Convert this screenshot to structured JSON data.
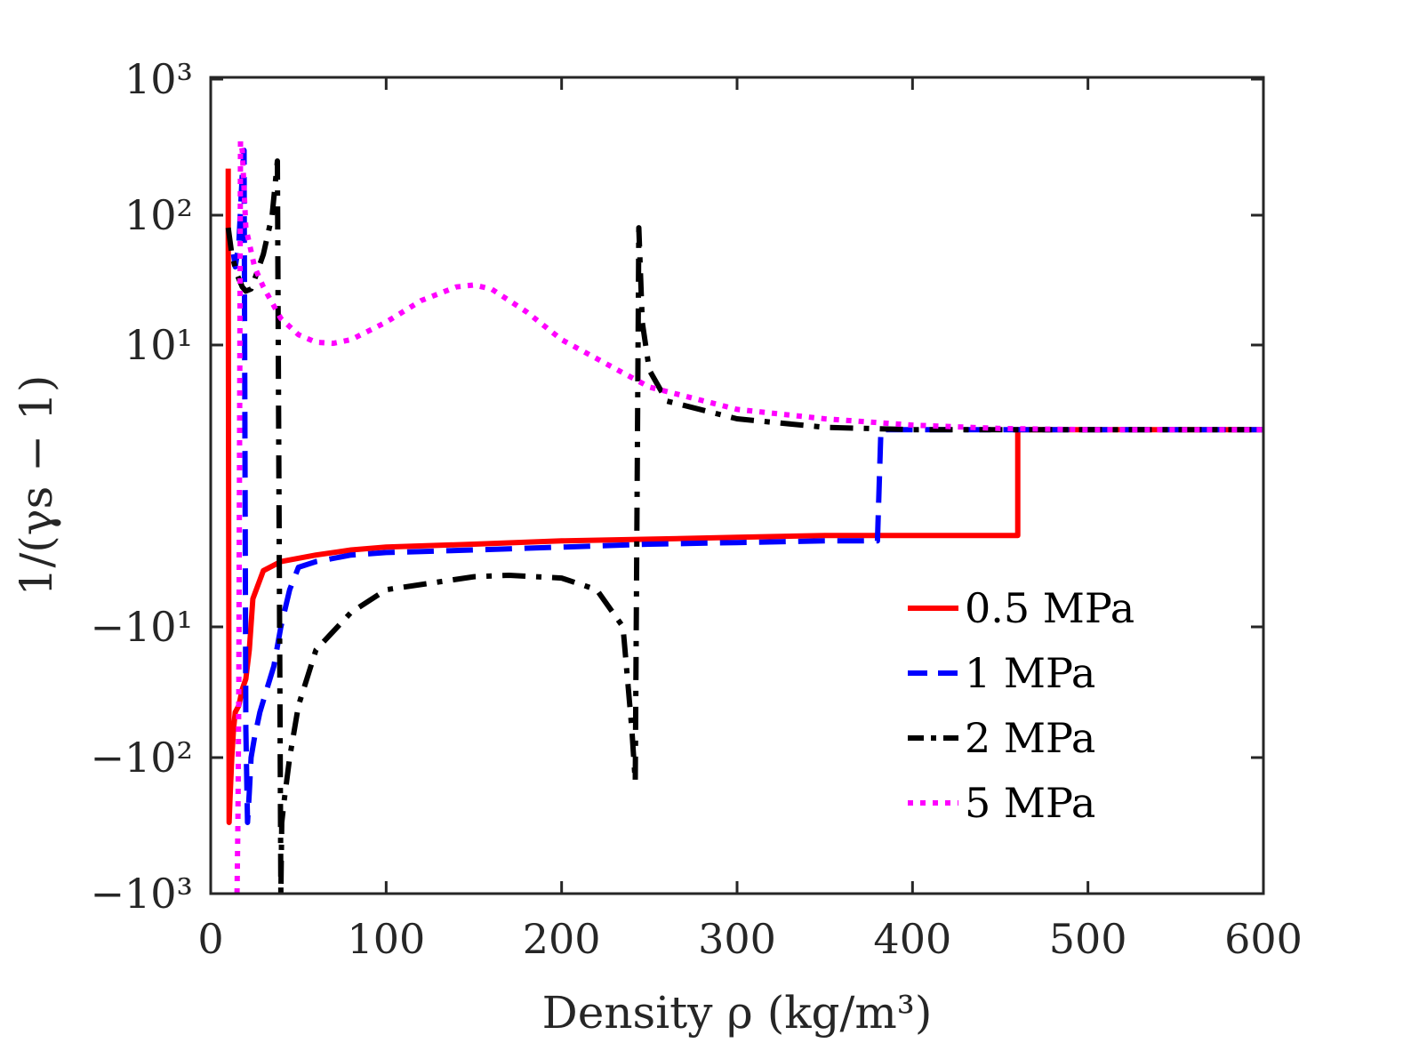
{
  "chart_data": {
    "type": "line",
    "xlabel": "Density ρ (kg/m³)",
    "ylabel": "1/(γs − 1)",
    "xlim": [
      0,
      600
    ],
    "xticks": [
      "0",
      "100",
      "200",
      "300",
      "400",
      "500",
      "600"
    ],
    "yscale": "symlog",
    "yticks": [
      "10³",
      "10²",
      "10¹",
      "−10¹",
      "−10²",
      "−10³"
    ],
    "grid": false,
    "legend_position": "lower-right",
    "series": [
      {
        "name": "0.5 MPa",
        "color": "#ff0000",
        "style": "solid",
        "x": [
          10,
          10,
          10.5,
          11,
          12,
          13,
          14,
          16,
          18,
          20,
          22,
          24,
          30,
          40,
          60,
          80,
          100,
          150,
          200,
          250,
          300,
          350,
          400,
          450,
          460,
          460,
          480,
          500,
          550,
          600
        ],
        "y": [
          220,
          60,
          -300,
          -200,
          -100,
          -60,
          -45,
          -40,
          -30,
          -25,
          -15,
          -5,
          -2.5,
          -2,
          -1.7,
          -1.5,
          -1.4,
          -1.3,
          -1.2,
          -1.15,
          -1.1,
          -1.05,
          -1.05,
          -1.05,
          -1.05,
          3,
          3,
          3,
          3,
          3
        ]
      },
      {
        "name": "1 MPa",
        "color": "#0000ff",
        "style": "dashed",
        "x": [
          13,
          14,
          16,
          18,
          19,
          20,
          21,
          22,
          23,
          25,
          28,
          32,
          36,
          40,
          45,
          50,
          60,
          80,
          100,
          150,
          200,
          250,
          300,
          350,
          380,
          382,
          400,
          450,
          500,
          600
        ],
        "y": [
          50,
          40,
          60,
          200,
          300,
          -60,
          -300,
          -180,
          -100,
          -70,
          -45,
          -30,
          -20,
          -10,
          -4,
          -2.3,
          -2,
          -1.7,
          -1.6,
          -1.5,
          -1.4,
          -1.3,
          -1.25,
          -1.2,
          -1.2,
          3,
          3,
          3,
          3,
          3
        ]
      },
      {
        "name": "2 MPa",
        "color": "#000000",
        "style": "dashdot",
        "x": [
          10,
          12,
          15,
          18,
          20,
          23,
          26,
          30,
          35,
          38,
          40,
          40.5,
          42,
          45,
          50,
          60,
          80,
          100,
          150,
          170,
          200,
          220,
          235,
          240,
          242,
          244,
          246,
          250,
          260,
          300,
          350,
          400,
          450,
          500,
          600
        ],
        "y": [
          80,
          50,
          35,
          28,
          26,
          27,
          35,
          50,
          100,
          250,
          -1000,
          -300,
          -200,
          -100,
          -40,
          -15,
          -7,
          -4,
          -2.9,
          -2.8,
          -3,
          -4,
          -10,
          -60,
          -150,
          80,
          15,
          7,
          4.5,
          3.5,
          3.1,
          3,
          3,
          3,
          3
        ]
      },
      {
        "name": "5 MPa",
        "color": "#ff00ff",
        "style": "dotted",
        "x": [
          15,
          15.5,
          16,
          17,
          18,
          20,
          25,
          30,
          40,
          50,
          60,
          70,
          80,
          100,
          120,
          140,
          150,
          160,
          180,
          200,
          250,
          300,
          350,
          400,
          450,
          500,
          600
        ],
        "y": [
          -1000,
          -300,
          -30,
          350,
          300,
          80,
          40,
          28,
          16,
          12,
          10.5,
          10.3,
          11,
          15,
          22,
          28,
          29,
          27,
          18,
          11,
          5.5,
          4,
          3.5,
          3.2,
          3.05,
          3,
          3
        ]
      }
    ]
  }
}
